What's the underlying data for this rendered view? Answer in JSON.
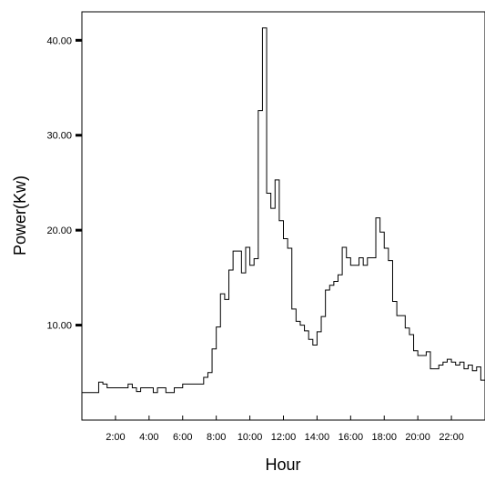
{
  "chart_data": {
    "type": "line",
    "step": true,
    "xlabel": "Hour",
    "ylabel": "Power(Kw)",
    "xlim": [
      0,
      24
    ],
    "ylim": [
      0,
      43
    ],
    "x_ticks": [
      {
        "value": 2,
        "label": "2:00"
      },
      {
        "value": 4,
        "label": "4:00"
      },
      {
        "value": 6,
        "label": "6:00"
      },
      {
        "value": 8,
        "label": "8:00"
      },
      {
        "value": 10,
        "label": "10:00"
      },
      {
        "value": 12,
        "label": "12:00"
      },
      {
        "value": 14,
        "label": "14:00"
      },
      {
        "value": 16,
        "label": "16:00"
      },
      {
        "value": 18,
        "label": "18:00"
      },
      {
        "value": 20,
        "label": "20:00"
      },
      {
        "value": 22,
        "label": "22:00"
      }
    ],
    "y_ticks": [
      {
        "value": 10,
        "label": "10.00"
      },
      {
        "value": 20,
        "label": "20.00"
      },
      {
        "value": 30,
        "label": "30.00"
      },
      {
        "value": 40,
        "label": "40.00"
      }
    ],
    "grid": false,
    "legend": "none",
    "series": [
      {
        "x": [
          0,
          0.25,
          0.5,
          0.75,
          1,
          1.25,
          1.5,
          1.75,
          2,
          2.25,
          2.5,
          2.75,
          3,
          3.25,
          3.5,
          3.75,
          4,
          4.25,
          4.5,
          4.75,
          5,
          5.25,
          5.5,
          5.75,
          6,
          6.25,
          6.5,
          6.75,
          7,
          7.25,
          7.5,
          7.75,
          8,
          8.25,
          8.5,
          8.75,
          9,
          9.25,
          9.5,
          9.75,
          10,
          10.25,
          10.5,
          10.75,
          11,
          11.25,
          11.5,
          11.75,
          12,
          12.25,
          12.5,
          12.75,
          13,
          13.25,
          13.5,
          13.75,
          14,
          14.25,
          14.5,
          14.75,
          15,
          15.25,
          15.5,
          15.75,
          16,
          16.25,
          16.5,
          16.75,
          17,
          17.25,
          17.5,
          17.75,
          18,
          18.25,
          18.5,
          18.75,
          19,
          19.25,
          19.5,
          19.75,
          20,
          20.25,
          20.5,
          20.75,
          21,
          21.25,
          21.5,
          21.75,
          22,
          22.25,
          22.5,
          22.75,
          23,
          23.25,
          23.5,
          23.75
        ],
        "values": [
          2.9,
          2.9,
          2.9,
          2.9,
          4.0,
          3.8,
          3.4,
          3.4,
          3.4,
          3.4,
          3.4,
          3.8,
          3.4,
          3.0,
          3.4,
          3.4,
          3.4,
          2.9,
          3.4,
          3.4,
          2.9,
          2.9,
          3.4,
          3.4,
          3.8,
          3.8,
          3.8,
          3.8,
          3.8,
          4.5,
          5.0,
          7.5,
          9.8,
          13.3,
          12.7,
          15.8,
          17.8,
          17.8,
          15.5,
          18.2,
          16.3,
          17.0,
          32.6,
          41.3,
          23.9,
          22.3,
          25.3,
          21.0,
          19.1,
          18.1,
          11.7,
          10.4,
          10.0,
          9.4,
          8.5,
          7.9,
          9.3,
          10.9,
          13.7,
          14.2,
          14.6,
          15.3,
          18.2,
          17.1,
          16.3,
          16.3,
          17.1,
          16.3,
          17.1,
          17.1,
          21.3,
          19.8,
          18.1,
          16.8,
          12.5,
          11.0,
          11.0,
          9.7,
          9.0,
          7.3,
          6.8,
          6.8,
          7.2,
          5.4,
          5.4,
          5.8,
          6.1,
          6.4,
          6.1,
          5.8,
          6.1,
          5.4,
          5.8,
          5.2,
          5.6,
          4.2
        ]
      }
    ]
  }
}
